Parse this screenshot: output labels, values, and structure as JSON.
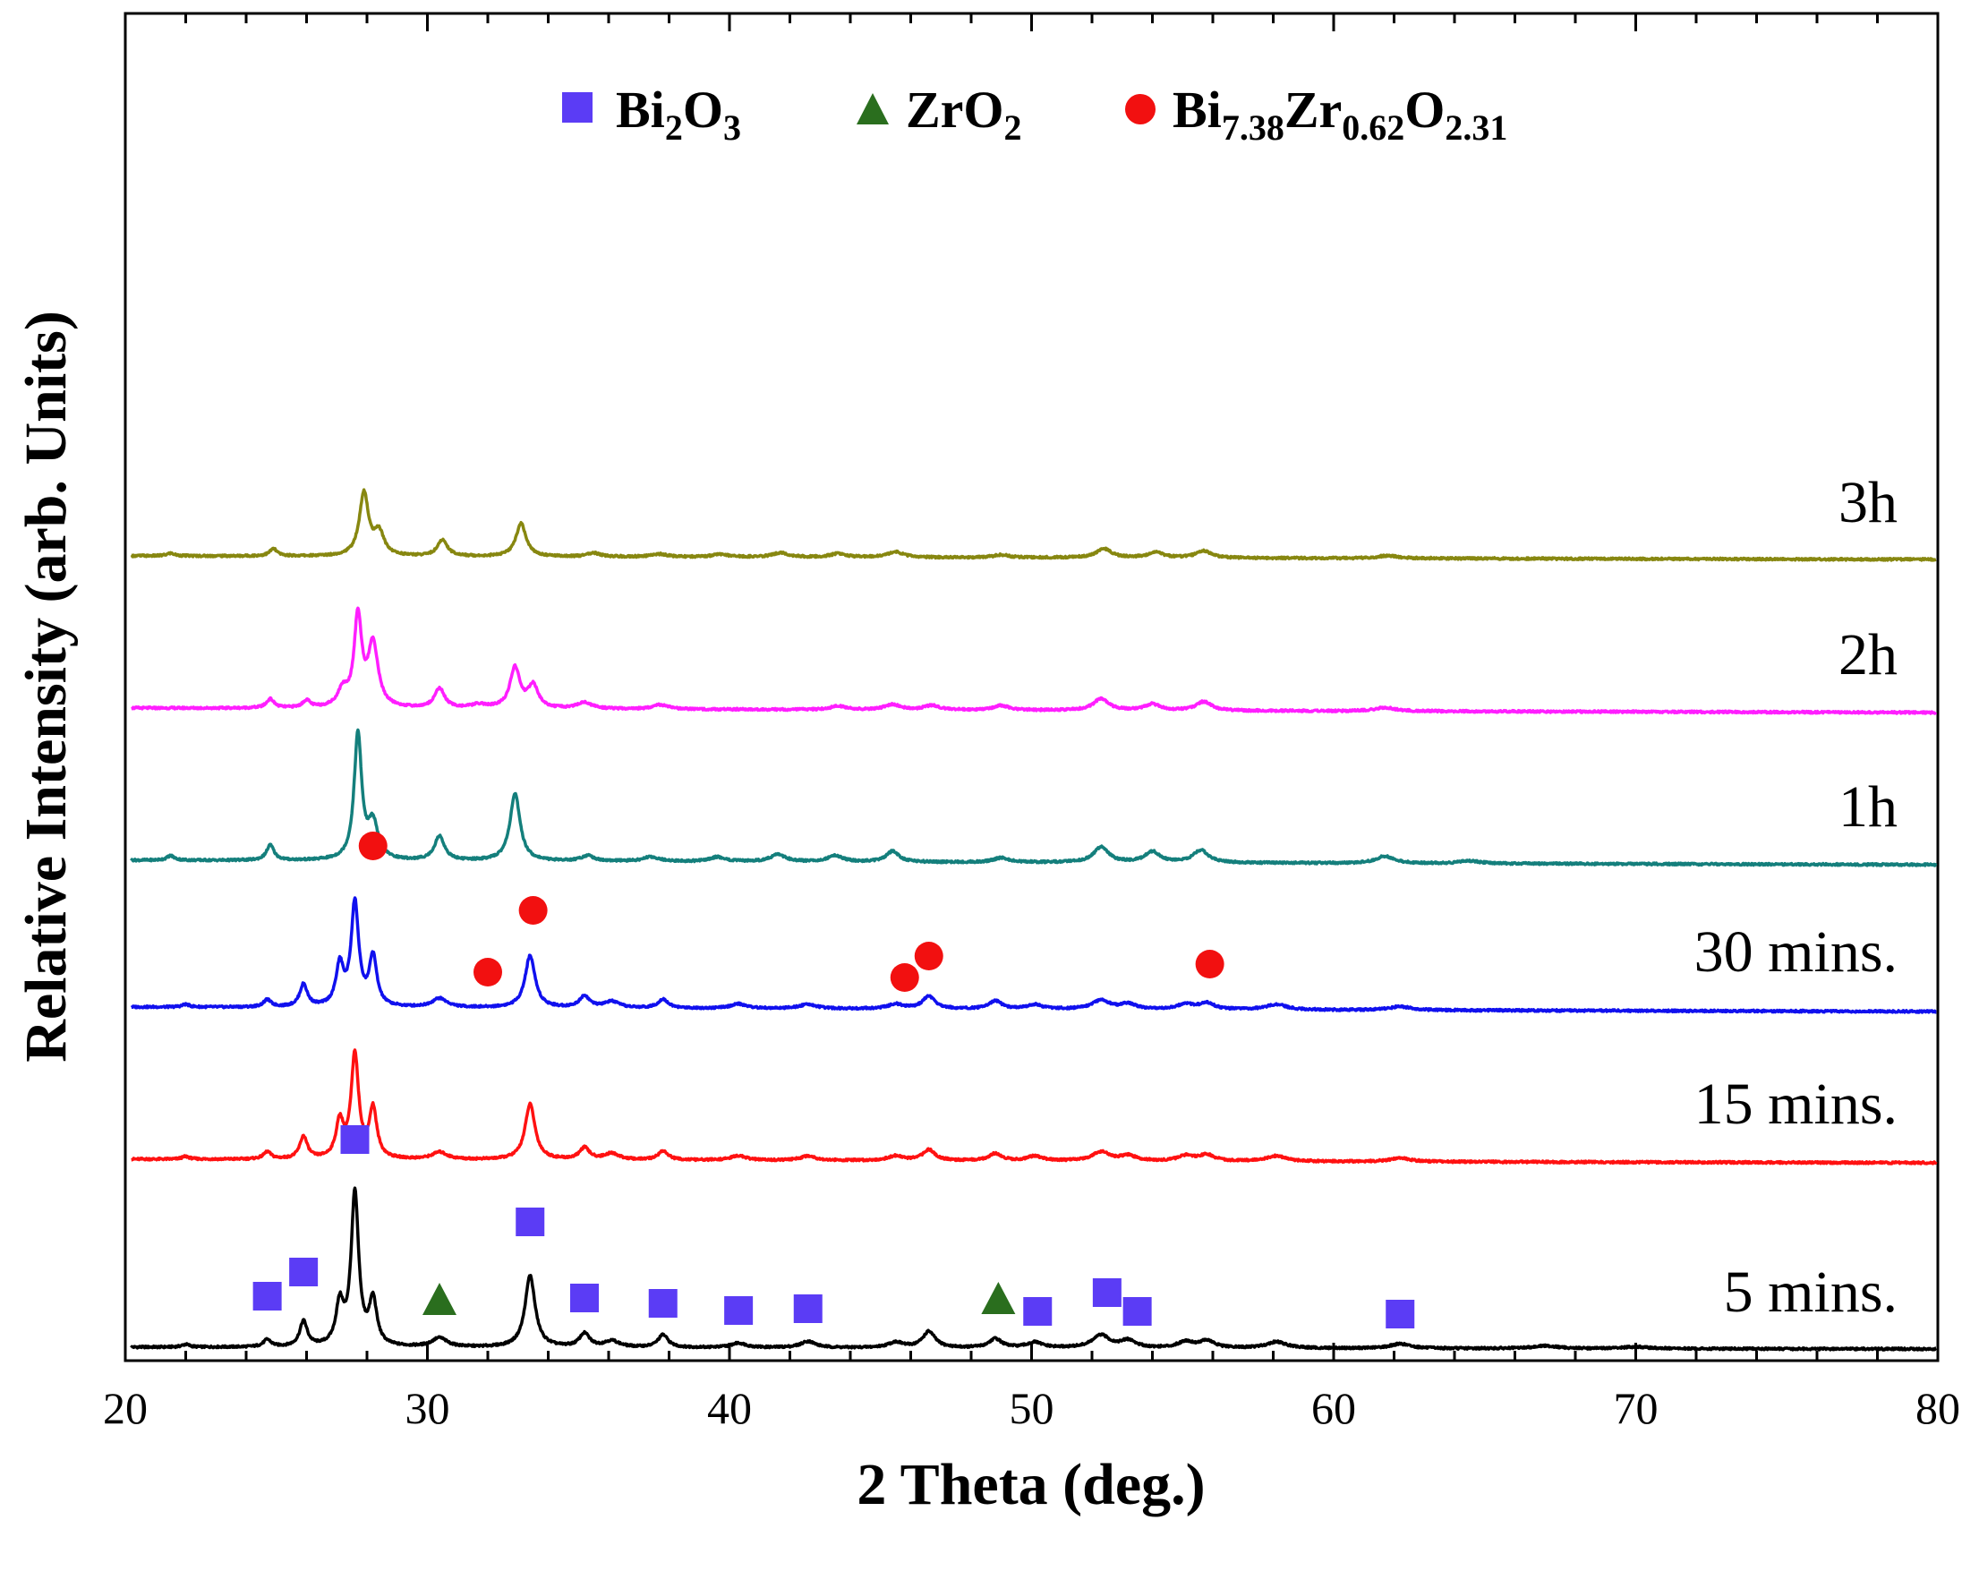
{
  "chart_data": {
    "type": "line",
    "xlabel": "2 Theta (deg.)",
    "ylabel": "Relative Intensity (arb. Units)",
    "xlim": [
      20,
      80
    ],
    "x_ticks": [
      20,
      30,
      40,
      50,
      60,
      70,
      80
    ],
    "y_ticks_shown": false,
    "legend": {
      "placement": "top-center",
      "entries": [
        {
          "name": "Bi2O3",
          "base": "Bi",
          "sub1": "2",
          "mid": "O",
          "sub2": "3",
          "marker": "square",
          "color": "#5b3cf5"
        },
        {
          "name": "ZrO2",
          "base": "ZrO",
          "sub1": "2",
          "marker": "triangle",
          "color": "#2a6e1e"
        },
        {
          "name": "Bi7.38Zr0.62O2.31",
          "base": "Bi",
          "sub1": "7.38",
          "mid": "Zr",
          "sub2": "0.62",
          "end": "O",
          "sub3": "2.31",
          "marker": "circle",
          "color": "#f21010"
        }
      ]
    },
    "series": [
      {
        "name": "5 mins.",
        "color": "#000000",
        "offset": 0,
        "baseline": 3,
        "slope": -2,
        "peaks": [
          [
            22,
            3,
            0.15
          ],
          [
            24.7,
            8,
            0.15
          ],
          [
            25.9,
            28,
            0.15
          ],
          [
            27.1,
            45,
            0.15
          ],
          [
            27.6,
            170,
            0.15
          ],
          [
            28.2,
            50,
            0.15
          ],
          [
            30.4,
            10,
            0.3
          ],
          [
            33.4,
            80,
            0.2
          ],
          [
            35.2,
            15,
            0.2
          ],
          [
            36.1,
            7,
            0.3
          ],
          [
            37.8,
            14,
            0.2
          ],
          [
            40.3,
            5,
            0.3
          ],
          [
            42.6,
            7,
            0.3
          ],
          [
            45.5,
            6,
            0.3
          ],
          [
            46.6,
            18,
            0.25
          ],
          [
            48.8,
            10,
            0.25
          ],
          [
            50.1,
            6,
            0.3
          ],
          [
            52.3,
            14,
            0.35
          ],
          [
            53.2,
            8,
            0.3
          ],
          [
            55.1,
            7,
            0.3
          ],
          [
            55.8,
            8,
            0.3
          ],
          [
            58.1,
            7,
            0.4
          ],
          [
            62.2,
            5,
            0.4
          ],
          [
            67,
            3,
            0.5
          ],
          [
            70,
            2,
            0.5
          ]
        ]
      },
      {
        "name": "15 mins.",
        "color": "#ff1111",
        "offset": 210,
        "baseline": 3,
        "slope": -4,
        "peaks": [
          [
            22,
            3,
            0.15
          ],
          [
            24.7,
            8,
            0.15
          ],
          [
            25.9,
            25,
            0.15
          ],
          [
            27.1,
            40,
            0.15
          ],
          [
            27.6,
            115,
            0.15
          ],
          [
            28.2,
            55,
            0.15
          ],
          [
            30.4,
            8,
            0.3
          ],
          [
            33.4,
            62,
            0.2
          ],
          [
            35.2,
            13,
            0.2
          ],
          [
            36.1,
            7,
            0.3
          ],
          [
            37.8,
            10,
            0.2
          ],
          [
            40.3,
            5,
            0.3
          ],
          [
            42.6,
            5,
            0.3
          ],
          [
            45.5,
            5,
            0.3
          ],
          [
            46.6,
            12,
            0.25
          ],
          [
            48.8,
            8,
            0.25
          ],
          [
            50.1,
            5,
            0.3
          ],
          [
            52.3,
            10,
            0.35
          ],
          [
            53.2,
            6,
            0.3
          ],
          [
            55.1,
            6,
            0.3
          ],
          [
            55.8,
            7,
            0.3
          ],
          [
            58.1,
            6,
            0.4
          ],
          [
            62.2,
            4,
            0.4
          ]
        ]
      },
      {
        "name": "30 mins.",
        "color": "#1010ee",
        "offset": 380,
        "baseline": 3,
        "slope": -5,
        "peaks": [
          [
            22,
            3,
            0.15
          ],
          [
            24.7,
            8,
            0.15
          ],
          [
            25.9,
            25,
            0.15
          ],
          [
            27.1,
            45,
            0.15
          ],
          [
            27.6,
            115,
            0.15
          ],
          [
            28.2,
            55,
            0.15
          ],
          [
            30.4,
            10,
            0.3
          ],
          [
            33.4,
            58,
            0.2
          ],
          [
            35.2,
            13,
            0.2
          ],
          [
            36.1,
            7,
            0.3
          ],
          [
            37.8,
            10,
            0.2
          ],
          [
            40.3,
            5,
            0.3
          ],
          [
            42.6,
            5,
            0.3
          ],
          [
            45.5,
            5,
            0.3
          ],
          [
            46.6,
            14,
            0.25
          ],
          [
            48.8,
            9,
            0.25
          ],
          [
            50.1,
            5,
            0.3
          ],
          [
            52.3,
            10,
            0.35
          ],
          [
            53.2,
            6,
            0.3
          ],
          [
            55.1,
            6,
            0.3
          ],
          [
            55.8,
            7,
            0.3
          ],
          [
            58.1,
            6,
            0.4
          ],
          [
            62.2,
            4,
            0.4
          ]
        ]
      },
      {
        "name": "1h",
        "color": "#147f7c",
        "offset": 542,
        "baseline": 5,
        "slope": -5,
        "peaks": [
          [
            21.5,
            5,
            0.15
          ],
          [
            24.8,
            17,
            0.15
          ],
          [
            27.7,
            140,
            0.15
          ],
          [
            28.2,
            40,
            0.2
          ],
          [
            30.4,
            27,
            0.2
          ],
          [
            32.9,
            75,
            0.2
          ],
          [
            35.3,
            6,
            0.25
          ],
          [
            37.4,
            5,
            0.3
          ],
          [
            39.6,
            5,
            0.3
          ],
          [
            41.6,
            8,
            0.3
          ],
          [
            43.5,
            7,
            0.3
          ],
          [
            45.4,
            12,
            0.25
          ],
          [
            49,
            5,
            0.3
          ],
          [
            52.3,
            17,
            0.3
          ],
          [
            54,
            12,
            0.3
          ],
          [
            55.6,
            14,
            0.3
          ],
          [
            61.7,
            8,
            0.35
          ],
          [
            64.5,
            3,
            0.4
          ]
        ]
      },
      {
        "name": "2h",
        "color": "#ff1eff",
        "offset": 712,
        "baseline": 5,
        "slope": -5,
        "peaks": [
          [
            24.8,
            10,
            0.15
          ],
          [
            26,
            8,
            0.15
          ],
          [
            27.2,
            18,
            0.2
          ],
          [
            27.7,
            100,
            0.15
          ],
          [
            28.2,
            70,
            0.2
          ],
          [
            30.4,
            22,
            0.2
          ],
          [
            31.7,
            4,
            0.3
          ],
          [
            32.9,
            45,
            0.2
          ],
          [
            33.5,
            25,
            0.2
          ],
          [
            35.2,
            7,
            0.3
          ],
          [
            37.7,
            5,
            0.3
          ],
          [
            43.6,
            4,
            0.3
          ],
          [
            45.4,
            6,
            0.3
          ],
          [
            46.7,
            5,
            0.3
          ],
          [
            49,
            5,
            0.3
          ],
          [
            52.3,
            13,
            0.3
          ],
          [
            54,
            7,
            0.3
          ],
          [
            55.7,
            10,
            0.3
          ],
          [
            61.7,
            4,
            0.4
          ]
        ]
      },
      {
        "name": "3h",
        "color": "#878710",
        "offset": 882,
        "baseline": 5,
        "slope": -4,
        "peaks": [
          [
            21.5,
            3,
            0.15
          ],
          [
            24.9,
            8,
            0.15
          ],
          [
            27.9,
            70,
            0.18
          ],
          [
            28.4,
            25,
            0.2
          ],
          [
            30.5,
            18,
            0.2
          ],
          [
            33.1,
            37,
            0.2
          ],
          [
            35.5,
            4,
            0.25
          ],
          [
            37.7,
            3,
            0.3
          ],
          [
            39.7,
            3,
            0.3
          ],
          [
            41.7,
            5,
            0.3
          ],
          [
            43.6,
            4,
            0.3
          ],
          [
            45.5,
            6,
            0.3
          ],
          [
            49,
            3,
            0.3
          ],
          [
            52.4,
            10,
            0.3
          ],
          [
            54.1,
            6,
            0.3
          ],
          [
            55.7,
            8,
            0.3
          ],
          [
            61.8,
            3,
            0.4
          ]
        ]
      }
    ],
    "phase_markers": [
      {
        "phase": "Bi2O3",
        "marker": "square",
        "color": "#5b3cf5",
        "series": "5 mins.",
        "positions": [
          [
            24.7,
            60
          ],
          [
            25.9,
            87
          ],
          [
            27.6,
            235
          ],
          [
            33.4,
            143
          ],
          [
            35.2,
            58
          ],
          [
            37.8,
            52
          ],
          [
            40.3,
            44
          ],
          [
            42.6,
            46
          ],
          [
            50.2,
            43
          ],
          [
            52.5,
            64
          ],
          [
            53.5,
            43
          ],
          [
            62.2,
            40
          ]
        ]
      },
      {
        "phase": "ZrO2",
        "marker": "triangle",
        "color": "#2a6e1e",
        "series": "5 mins.",
        "positions": [
          [
            30.4,
            56
          ],
          [
            48.9,
            57
          ]
        ]
      },
      {
        "phase": "Bi7.38Zr0.62O2.31",
        "marker": "circle",
        "color": "#f21010",
        "series": "30 mins.",
        "positions": [
          [
            28.2,
            183
          ],
          [
            33.5,
            111
          ],
          [
            32,
            42
          ],
          [
            45.8,
            36
          ],
          [
            46.6,
            60
          ],
          [
            55.9,
            51
          ]
        ]
      }
    ]
  }
}
